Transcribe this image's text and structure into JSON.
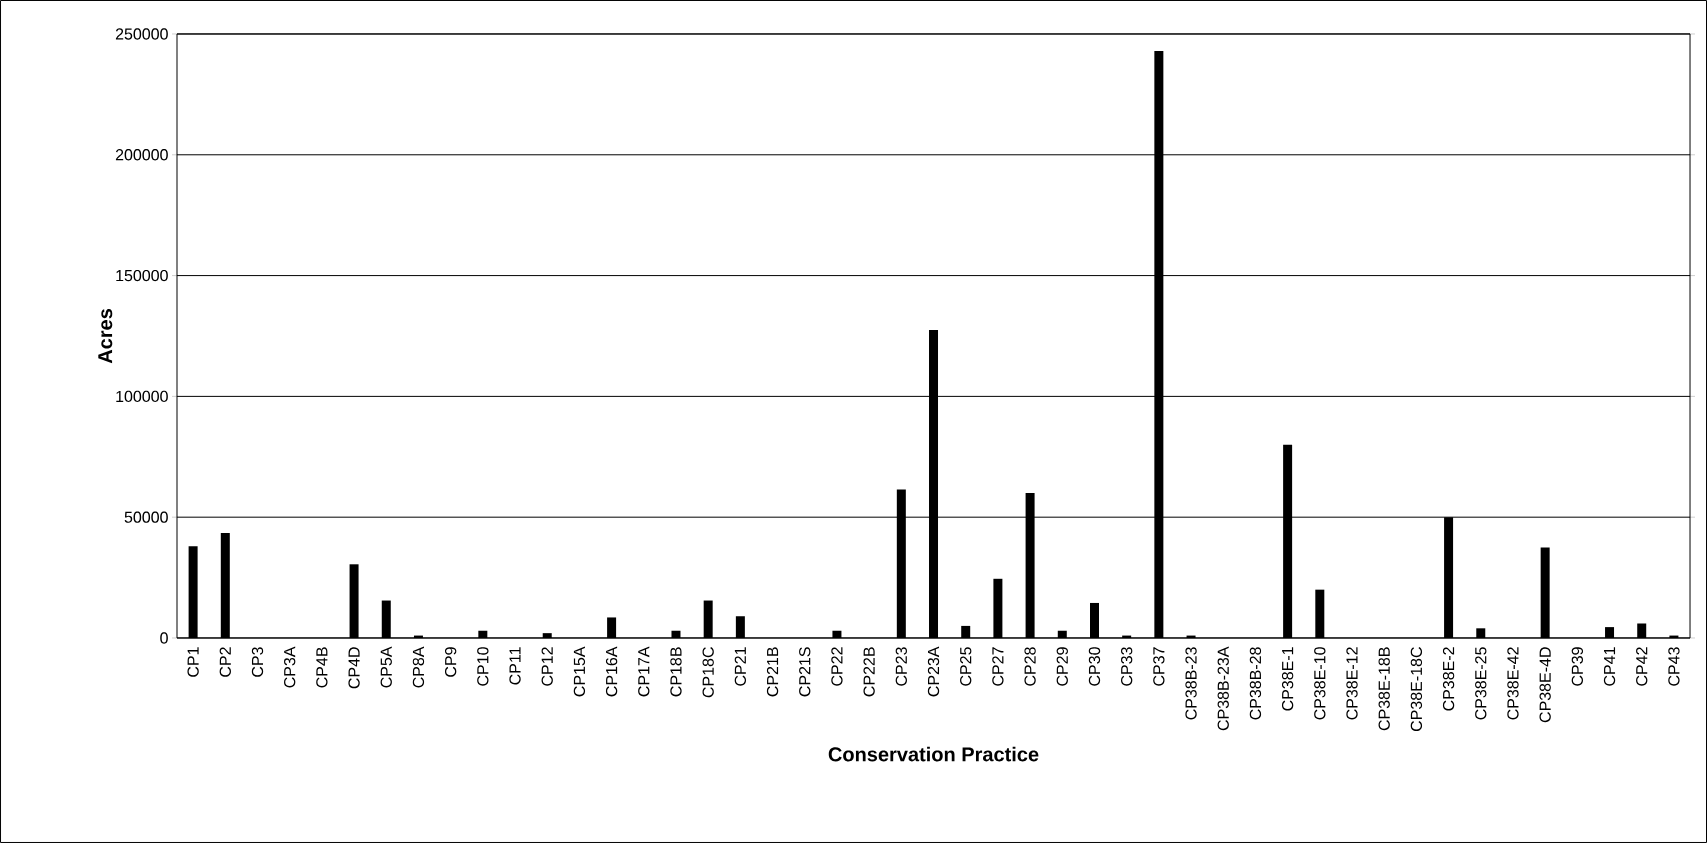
{
  "chart_data": {
    "type": "bar",
    "xlabel": "Conservation Practice",
    "ylabel": "Acres",
    "categories": [
      "CP1",
      "CP2",
      "CP3",
      "CP3A",
      "CP4B",
      "CP4D",
      "CP5A",
      "CP8A",
      "CP9",
      "CP10",
      "CP11",
      "CP12",
      "CP15A",
      "CP16A",
      "CP17A",
      "CP18B",
      "CP18C",
      "CP21",
      "CP21B",
      "CP21S",
      "CP22",
      "CP22B",
      "CP23",
      "CP23A",
      "CP25",
      "CP27",
      "CP28",
      "CP29",
      "CP30",
      "CP33",
      "CP37",
      "CP38B-23",
      "CP38B-23A",
      "CP38B-28",
      "CP38E-1",
      "CP38E-10",
      "CP38E-12",
      "CP38E-18B",
      "CP38E-18C",
      "CP38E-2",
      "CP38E-25",
      "CP38E-42",
      "CP38E-4D",
      "CP39",
      "CP41",
      "CP42",
      "CP43"
    ],
    "values": [
      38000,
      43500,
      0,
      0,
      0,
      30500,
      15500,
      1000,
      0,
      3000,
      0,
      2000,
      0,
      8500,
      0,
      3000,
      15500,
      9000,
      0,
      0,
      3000,
      0,
      61500,
      127500,
      5000,
      24500,
      60000,
      3000,
      14500,
      1000,
      243000,
      1000,
      0,
      0,
      80000,
      20000,
      0,
      0,
      0,
      50000,
      4000,
      0,
      37500,
      0,
      4500,
      6000,
      1000
    ],
    "color": "#000000",
    "ylim": [
      0,
      250000
    ],
    "yticks": [
      0,
      50000,
      100000,
      150000,
      200000,
      250000
    ],
    "grid": "y"
  }
}
